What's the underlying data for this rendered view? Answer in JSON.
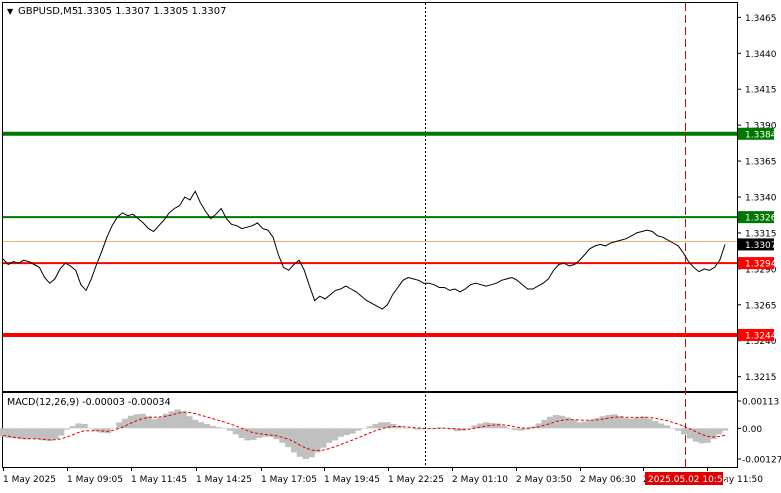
{
  "header": {
    "arrow": "▼",
    "symbol": "GBPUSD,M5",
    "ohlc": "1.3305 1.3307 1.3305 1.3307"
  },
  "macd": {
    "label": "MACD(12,26,9) -0.00003 -0.00034",
    "ticks": [
      "0.00113",
      "0.00",
      "-0.00127"
    ],
    "tick_values": [
      0.00113,
      0.0,
      -0.00127
    ],
    "histogram_color": "#c0c0c0",
    "signal_color": "#e00000",
    "histogram": [
      -0.00034,
      -0.0004,
      -0.00042,
      -0.00045,
      -0.00046,
      -0.00042,
      -0.00045,
      -0.0005,
      -0.00052,
      -0.00045,
      -0.0003,
      -5e-05,
      0.0001,
      0.0002,
      0.00018,
      0.0,
      -0.00012,
      -0.00018,
      -0.0002,
      0.0,
      0.00025,
      0.0004,
      0.00052,
      0.00058,
      0.0006,
      0.0005,
      0.00038,
      0.00045,
      0.0006,
      0.0007,
      0.00078,
      0.0007,
      0.0005,
      0.00035,
      0.00025,
      0.00018,
      0.0001,
      5e-05,
      0.0,
      -0.0001,
      -0.00025,
      -0.0004,
      -0.0005,
      -0.00048,
      -0.0004,
      -0.00035,
      -0.00035,
      -0.00045,
      -0.0006,
      -0.00078,
      -0.001,
      -0.00118,
      -0.00127,
      -0.0012,
      -0.001,
      -0.0008,
      -0.0006,
      -0.0005,
      -0.00035,
      -0.00028,
      -0.00022,
      -0.0001,
      0.0,
      8e-05,
      0.00018,
      0.00025,
      0.00025,
      0.00018,
      0.0001,
      2e-05,
      -2e-05,
      -5e-05,
      -4e-05,
      -2e-05,
      0.0,
      4e-05,
      2e-05,
      -4e-05,
      -0.00012,
      -0.0001,
      0.0,
      0.00012,
      0.0002,
      0.00025,
      0.00022,
      0.0002,
      0.0001,
      0.0,
      -8e-05,
      -0.0001,
      -5e-05,
      8e-05,
      0.0002,
      0.00035,
      0.00048,
      0.00055,
      0.00052,
      0.00045,
      0.00035,
      0.00025,
      0.00028,
      0.00035,
      0.00042,
      0.0005,
      0.00055,
      0.00058,
      0.0005,
      0.00042,
      0.0004,
      0.00045,
      0.00048,
      0.0004,
      0.0003,
      0.0002,
      0.00012,
      0.0,
      -0.0001,
      -0.00025,
      -0.00042,
      -0.00055,
      -0.00062,
      -0.0006,
      -0.00045,
      -0.00025,
      -0.0001
    ],
    "signal": [
      -0.0003,
      -0.00033,
      -0.00037,
      -0.0004,
      -0.00043,
      -0.00043,
      -0.00044,
      -0.00046,
      -0.00048,
      -0.00047,
      -0.00044,
      -0.00036,
      -0.00027,
      -0.00017,
      -0.0001,
      -0.0001,
      -0.0001,
      -0.00011,
      -0.00013,
      -8e-05,
      0.0,
      0.0001,
      0.00022,
      0.00032,
      0.0004,
      0.00045,
      0.00046,
      0.00047,
      0.0005,
      0.00055,
      0.00062,
      0.00067,
      0.00066,
      0.00061,
      0.00054,
      0.00047,
      0.0004,
      0.00033,
      0.00026,
      0.00018,
      0.0001,
      0.0,
      -0.0001,
      -0.00018,
      -0.00022,
      -0.00025,
      -0.00028,
      -0.00031,
      -0.00037,
      -0.00045,
      -0.00056,
      -0.0007,
      -0.00082,
      -0.0009,
      -0.00092,
      -0.0009,
      -0.00084,
      -0.00076,
      -0.00067,
      -0.00058,
      -0.00049,
      -0.00039,
      -0.00029,
      -0.00019,
      -0.0001,
      -2e-05,
      4e-05,
      7e-05,
      8e-05,
      6e-05,
      4e-05,
      2e-05,
      0.0,
      -1e-05,
      -1e-05,
      0.0,
      0.0,
      -1e-05,
      -3e-05,
      -5e-05,
      -4e-05,
      0.0,
      5e-05,
      0.0001,
      0.00013,
      0.00015,
      0.00014,
      0.00011,
      6e-05,
      2e-05,
      0.0,
      2e-05,
      6e-05,
      0.00013,
      0.0002,
      0.00028,
      0.00033,
      0.00036,
      0.00036,
      0.00034,
      0.00033,
      0.00033,
      0.00035,
      0.00038,
      0.00042,
      0.00046,
      0.00047,
      0.00046,
      0.00045,
      0.00045,
      0.00046,
      0.00045,
      0.00042,
      0.00037,
      0.00032,
      0.00025,
      0.00017,
      8e-05,
      -3e-05,
      -0.00014,
      -0.00025,
      -0.00033,
      -0.00036,
      -0.00034,
      -0.00029
    ]
  },
  "chart_data": {
    "type": "line",
    "ylim": [
      1.3205,
      1.3475
    ],
    "y_ticks": [
      "1.3465",
      "1.3440",
      "1.3415",
      "1.3390",
      "1.3365",
      "1.3340",
      "1.3315",
      "1.3290",
      "1.3265",
      "1.3240",
      "1.3215"
    ],
    "y_tick_values": [
      1.3465,
      1.344,
      1.3415,
      1.339,
      1.3365,
      1.334,
      1.3315,
      1.329,
      1.3265,
      1.324,
      1.3215
    ],
    "x_ticks": [
      "1 May 2025",
      "1 May 09:05",
      "1 May 11:45",
      "1 May 14:25",
      "1 May 17:05",
      "1 May 19:45",
      "1 May 22:25",
      "2 May 01:10",
      "2 May 03:50",
      "2 May 06:30",
      "2 May 09:10",
      "2 May 11:50"
    ],
    "grid": false,
    "levels": [
      {
        "value": 1.3384,
        "label": "1.3384",
        "color": "#007700",
        "width": 4,
        "style": "solid"
      },
      {
        "value": 1.3326,
        "label": "1.3326",
        "color": "#007700",
        "width": 2,
        "style": "solid"
      },
      {
        "value": 1.3294,
        "label": "1.3294",
        "color": "#ff0000",
        "width": 2,
        "style": "solid"
      },
      {
        "value": 1.3244,
        "label": "1.3244",
        "color": "#ff0000",
        "width": 4,
        "style": "solid"
      },
      {
        "value": 1.3309,
        "label": "",
        "color": "#f0b070",
        "width": 1,
        "style": "solid"
      }
    ],
    "current_price": {
      "value": 1.3307,
      "label": "1.3307",
      "color": "#000000"
    },
    "marker_label": "2025.05.02 10:55",
    "session_separator_label": "2 May 09:10",
    "series": [
      {
        "color": "#000000",
        "values": [
          1.3297,
          1.3293,
          1.3295,
          1.3294,
          1.3296,
          1.3295,
          1.3293,
          1.3291,
          1.3284,
          1.328,
          1.3283,
          1.329,
          1.3294,
          1.3292,
          1.3289,
          1.3279,
          1.3275,
          1.3283,
          1.3293,
          1.3302,
          1.3312,
          1.332,
          1.3326,
          1.3329,
          1.3327,
          1.3328,
          1.3325,
          1.3322,
          1.3318,
          1.3316,
          1.332,
          1.3324,
          1.3329,
          1.3332,
          1.3334,
          1.334,
          1.3338,
          1.3344,
          1.3336,
          1.333,
          1.3325,
          1.3328,
          1.3332,
          1.3325,
          1.3321,
          1.332,
          1.3318,
          1.3319,
          1.332,
          1.3322,
          1.3318,
          1.3317,
          1.3312,
          1.33,
          1.3291,
          1.3289,
          1.3293,
          1.3296,
          1.3289,
          1.3278,
          1.3268,
          1.3271,
          1.3269,
          1.3272,
          1.3275,
          1.3276,
          1.3278,
          1.3276,
          1.3274,
          1.3271,
          1.3268,
          1.3266,
          1.3264,
          1.3262,
          1.3265,
          1.3272,
          1.3277,
          1.3282,
          1.3284,
          1.3283,
          1.3282,
          1.328,
          1.328,
          1.3279,
          1.3277,
          1.3277,
          1.3275,
          1.3276,
          1.3274,
          1.3276,
          1.3279,
          1.328,
          1.3279,
          1.3278,
          1.3279,
          1.328,
          1.3282,
          1.3283,
          1.3284,
          1.3282,
          1.3279,
          1.3276,
          1.3276,
          1.3278,
          1.328,
          1.3283,
          1.3289,
          1.3293,
          1.3294,
          1.3292,
          1.3293,
          1.3296,
          1.33,
          1.3304,
          1.3306,
          1.3307,
          1.3306,
          1.3308,
          1.3309,
          1.331,
          1.3311,
          1.3313,
          1.3315,
          1.3316,
          1.3317,
          1.3316,
          1.3313,
          1.3312,
          1.331,
          1.3308,
          1.3306,
          1.3301,
          1.3295,
          1.3291,
          1.3288,
          1.329,
          1.3289,
          1.3291,
          1.3296,
          1.3307
        ]
      }
    ]
  }
}
